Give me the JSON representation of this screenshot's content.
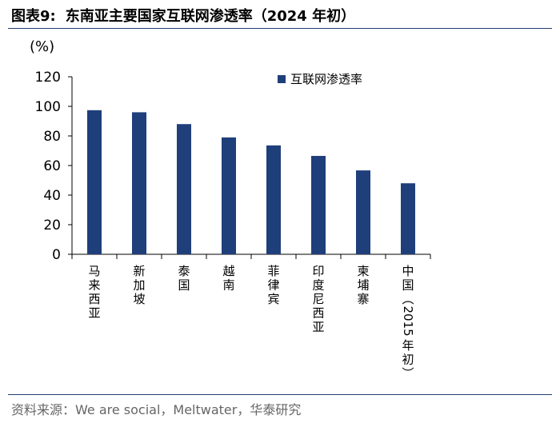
{
  "header": {
    "figure_no": "图表9:",
    "title": "东南亚主要国家互联网渗透率（2024 年初）"
  },
  "source": "资料来源：We are social，Meltwater，华泰研究",
  "chart_data": {
    "type": "bar",
    "categories": [
      "马来西亚",
      "新加坡",
      "泰国",
      "越南",
      "菲律宾",
      "印度尼西亚",
      "柬埔寨",
      "中国（2015年初）"
    ],
    "series": [
      {
        "name": "互联网渗透率",
        "values": [
          97.4,
          96.0,
          88.0,
          79.0,
          73.6,
          66.5,
          56.7,
          48.0
        ]
      }
    ],
    "ylabel": "(%)",
    "ylim": [
      0,
      120
    ],
    "yticks": [
      0,
      20,
      40,
      60,
      80,
      100,
      120
    ],
    "grid": false,
    "legend": "top-right",
    "bar_color": "#1f3f7a"
  }
}
